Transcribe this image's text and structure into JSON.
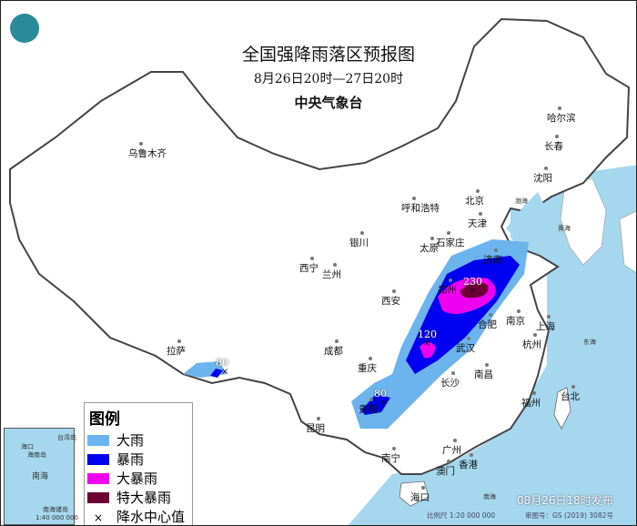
{
  "header": {
    "title": "全国强降雨落区预报图",
    "subtitle": "8月26日20时—27日20时",
    "issuer": "中央气象台"
  },
  "logo": {
    "icon": "cma-dragon-logo",
    "color": "#2a8a9a"
  },
  "colors": {
    "sea": "#a5d8ee",
    "land": "#ffffff",
    "border": "#555555"
  },
  "legend": {
    "title": "图例",
    "items": [
      {
        "label": "大雨",
        "color": "#6cb4ee"
      },
      {
        "label": "暴雨",
        "color": "#0000f0"
      },
      {
        "label": "大暴雨",
        "color": "#f000f0"
      },
      {
        "label": "特大暴雨",
        "color": "#6e0035"
      },
      {
        "label": "降水中心值",
        "symbol": "×"
      }
    ]
  },
  "centers": [
    "80",
    "230",
    "120",
    "80"
  ],
  "cities": [
    "乌鲁木齐",
    "呼和浩特",
    "北京",
    "天津",
    "石家庄",
    "太原",
    "济南",
    "郑州",
    "西安",
    "银川",
    "兰州",
    "西宁",
    "拉萨",
    "成都",
    "重庆",
    "武汉",
    "合肥",
    "南京",
    "上海",
    "杭州",
    "长沙",
    "南昌",
    "福州",
    "台北",
    "贵阳",
    "昆明",
    "南宁",
    "广州",
    "澳门",
    "香港",
    "海口",
    "哈尔滨",
    "长春",
    "沈阳"
  ],
  "seas": {
    "bohai": "渤海",
    "yellow": "黄海",
    "east": "东海",
    "south": "南海"
  },
  "inset": {
    "sea": "南海",
    "haikou": "海口",
    "hainan": "海南岛",
    "taiwan": "台湾岛",
    "islands": "南海诸岛",
    "scale": "1:40 000 000"
  },
  "footer": {
    "issued": "08月26日18时发布",
    "scale": "比例尺 1:20 000 000",
    "approval": "审图号：GS (2019) 3082号"
  }
}
